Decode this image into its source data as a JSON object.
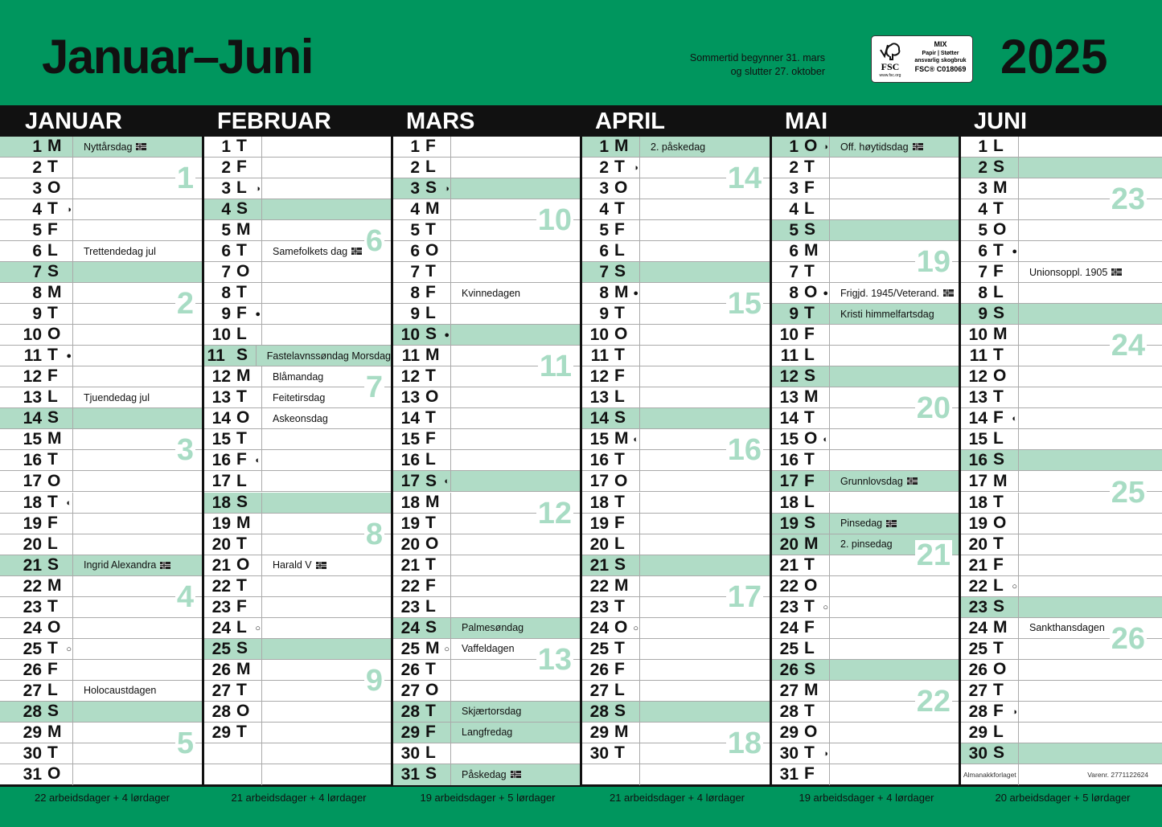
{
  "header": {
    "title": "Januar–Juni",
    "year": "2025",
    "dst_line1": "Sommertid begynner 31. mars",
    "dst_line2": "og slutter 27. oktober",
    "fsc": {
      "brand": "FSC",
      "site": "www.fsc.org",
      "mix": "MIX",
      "line1": "Papir | Støtter",
      "line2": "ansvarlig skogbruk",
      "code": "FSC® C018069"
    }
  },
  "colors": {
    "green": "#00965e",
    "shade": "#b0dcc6",
    "week": "#a8dcc4"
  },
  "moon_symbols": {
    "first": "◑",
    "new": "●",
    "last": "◐",
    "full": "○"
  },
  "months": [
    {
      "name": "JANUAR",
      "footer": "22 arbeidsdager + 4 lørdager",
      "letters": "MTOTFLSMTOTFLSMTOTFLSMTOTFLSMTO",
      "shaded": [
        1,
        7,
        14,
        21,
        28
      ],
      "notes": {
        "1": {
          "text": "Nyttårsdag",
          "flag": true
        },
        "6": {
          "text": "Trettendedag jul"
        },
        "13": {
          "text": "Tjuendedag jul"
        },
        "21": {
          "text": "Ingrid Alexandra",
          "flag": true
        },
        "27": {
          "text": "Holocaustdagen"
        }
      },
      "moons": {
        "4": "first",
        "11": "new",
        "18": "last",
        "25": "full"
      },
      "weeks": [
        {
          "n": "1",
          "monday": 1
        },
        {
          "n": "2",
          "monday": 8
        },
        {
          "n": "3",
          "monday": 15
        },
        {
          "n": "4",
          "monday": 22
        },
        {
          "n": "5",
          "monday": 29
        }
      ]
    },
    {
      "name": "FEBRUAR",
      "footer": "21 arbeidsdager + 4 lørdager",
      "letters": "TFLSMTOTFLSMTOTFLSMTOTFLSMTOT",
      "shaded": [
        4,
        11,
        18,
        25
      ],
      "notes": {
        "6": {
          "text": "Samefolkets dag",
          "flag": true
        },
        "11": {
          "text": "Fastelavnssøndag Morsdag"
        },
        "12": {
          "text": "Blåmandag"
        },
        "13": {
          "text": "Feitetirsdag"
        },
        "14": {
          "text": "Askeonsdag"
        },
        "21": {
          "text": "Harald V",
          "flag": true
        }
      },
      "moons": {
        "3": "first",
        "9": "new",
        "16": "last",
        "24": "full"
      },
      "weeks": [
        {
          "n": "6",
          "monday": 5
        },
        {
          "n": "7",
          "monday": 12
        },
        {
          "n": "8",
          "monday": 19
        },
        {
          "n": "9",
          "monday": 26
        }
      ]
    },
    {
      "name": "MARS",
      "footer": "19 arbeidsdager + 5 lørdager",
      "letters": "FLSMTOTFLSMTOTFLSMTOTFLSMTOTFLS",
      "shaded": [
        3,
        10,
        17,
        24,
        28,
        29,
        31
      ],
      "notes": {
        "8": {
          "text": "Kvinnedagen"
        },
        "24": {
          "text": "Palmesøndag"
        },
        "25": {
          "text": "Vaffeldagen"
        },
        "28": {
          "text": "Skjærtorsdag"
        },
        "29": {
          "text": "Langfredag"
        },
        "31": {
          "text": "Påskedag",
          "flag": true
        }
      },
      "moons": {
        "3": "first",
        "10": "new",
        "17": "last",
        "25": "full"
      },
      "weeks": [
        {
          "n": "10",
          "monday": 4
        },
        {
          "n": "11",
          "monday": 11
        },
        {
          "n": "12",
          "monday": 18
        },
        {
          "n": "13",
          "monday": 25
        }
      ]
    },
    {
      "name": "APRIL",
      "footer": "21 arbeidsdager + 4 lørdager",
      "letters": "MTOTFLSMTOTFLSMTOTFLSMTOTFLSMT",
      "shaded": [
        1,
        7,
        14,
        21,
        28
      ],
      "notes": {
        "1": {
          "text": "2. påskedag"
        }
      },
      "moons": {
        "2": "first",
        "8": "new",
        "15": "last",
        "24": "full"
      },
      "weeks": [
        {
          "n": "14",
          "monday": 1
        },
        {
          "n": "15",
          "monday": 8
        },
        {
          "n": "16",
          "monday": 15
        },
        {
          "n": "17",
          "monday": 22
        },
        {
          "n": "18",
          "monday": 29
        }
      ]
    },
    {
      "name": "MAI",
      "footer": "19 arbeidsdager + 4 lørdager",
      "letters": "OTFLSMTOTFLSMTOTFLSMTOTFLSMTOTF",
      "shaded": [
        1,
        5,
        9,
        12,
        17,
        19,
        20,
        26
      ],
      "notes": {
        "1": {
          "text": "Off. høytidsdag",
          "flag": true
        },
        "8": {
          "text": "Frigjd. 1945/Veterand.",
          "flag": true
        },
        "9": {
          "text": "Kristi himmelfartsdag"
        },
        "17": {
          "text": "Grunnlovsdag",
          "flag": true
        },
        "19": {
          "text": "Pinsedag",
          "flag": true
        },
        "20": {
          "text": "2. pinsedag"
        }
      },
      "moons": {
        "1": "first",
        "8": "new",
        "15": "last",
        "23": "full",
        "30": "first"
      },
      "weeks": [
        {
          "n": "19",
          "monday": 6
        },
        {
          "n": "20",
          "monday": 13
        },
        {
          "n": "21",
          "monday": 20
        },
        {
          "n": "22",
          "monday": 27
        }
      ]
    },
    {
      "name": "JUNI",
      "footer": "20 arbeidsdager + 5 lørdager",
      "letters": "LSMTOTFLSMTOTFLSMTOTFLSMTOTFLS",
      "shaded": [
        2,
        9,
        16,
        23,
        30
      ],
      "notes": {
        "7": {
          "text": "Unionsoppl. 1905",
          "flag": true
        },
        "24": {
          "text": "Sankthansdagen"
        }
      },
      "moons": {
        "6": "new",
        "14": "last",
        "22": "full",
        "28": "first"
      },
      "weeks": [
        {
          "n": "23",
          "monday": 3
        },
        {
          "n": "24",
          "monday": 10
        },
        {
          "n": "25",
          "monday": 17
        },
        {
          "n": "26",
          "monday": 24
        }
      ],
      "imprint": {
        "publisher": "Almanakkforlaget",
        "item_no": "Varenr. 2771122624"
      }
    }
  ]
}
